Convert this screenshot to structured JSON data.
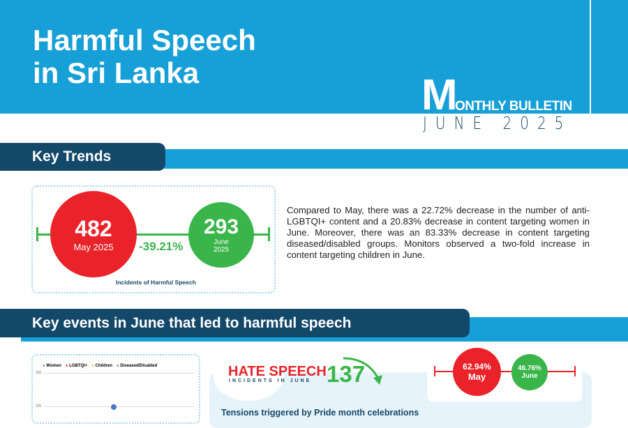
{
  "header": {
    "title_line1": "Harmful Speech",
    "title_line2": "in Sri Lanka",
    "bulletin_m": "M",
    "bulletin_rest": "ONTHLY BULLETIN",
    "date": "JUNE 2025"
  },
  "key_trends": {
    "heading": "Key Trends",
    "may": {
      "value": "482",
      "label": "May 2025"
    },
    "june": {
      "value": "293",
      "label_line1": "June",
      "label_line2": "2025"
    },
    "change": "-39.21%",
    "caption": "Incidents of Harmful Speech",
    "paragraph": "Compared to May, there was a 22.72% decrease in the number of anti-LGBTQI+ content and a 20.83% decrease in content targeting women in June. Moreover, there was an 83.33% decrease in content targeting diseased/disabled groups. Monitors observed a two-fold increase in content targeting children in June."
  },
  "key_events": {
    "heading": "Key events in June that led to harmful speech",
    "hate_speech_title": "HATE SPEECH",
    "hate_speech_sub": "INCIDENTS IN JUNE",
    "hate_speech_count": "137",
    "may_pct": "62.94%",
    "may_label": "May",
    "june_pct": "46.76%",
    "june_label": "June",
    "event_title": "Tensions triggered by Pride month celebrations"
  },
  "colors": {
    "blue": "#179fd7",
    "navy": "#144869",
    "red": "#e92329",
    "green": "#39b54a"
  },
  "chart_data": {
    "type": "line",
    "legend": [
      "Women",
      "LGBTQI+",
      "Children",
      "Diseased/Disabled"
    ],
    "legend_colors": [
      "#4a78c9",
      "#e92329",
      "#f6b81a",
      "#39b54a"
    ],
    "y_ticks": [
      "200",
      "200"
    ],
    "legend_position": "top",
    "grid": true
  }
}
